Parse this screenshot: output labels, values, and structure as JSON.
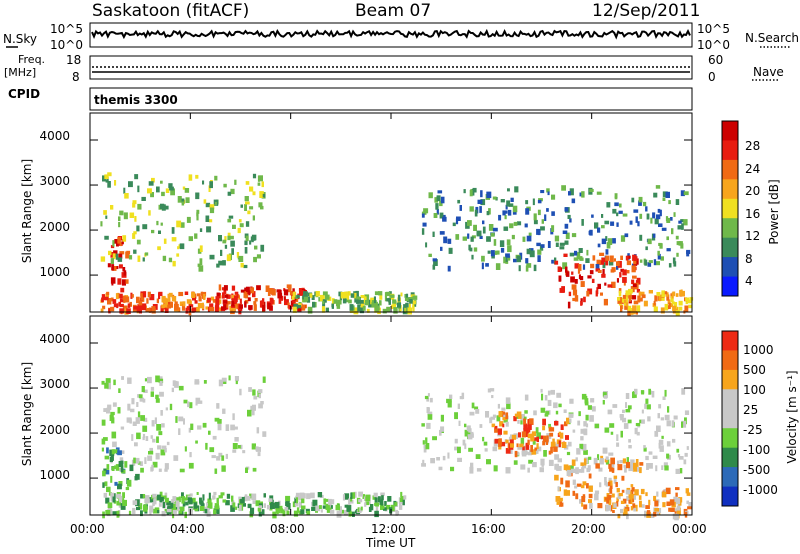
{
  "header": {
    "station": "Saskatoon (fitACF)",
    "beam": "Beam 07",
    "date": "12/Sep/2011"
  },
  "top_panels": {
    "nsky_label": "N.Sky",
    "nsky_ticks": [
      "10^5",
      "10^0"
    ],
    "nsearch_label": "N.Search",
    "nsearch_ticks": [
      "10^5",
      "10^0"
    ],
    "freq_label_1": "Freq.",
    "freq_label_2": "[MHz]",
    "freq_ticks": [
      "18",
      "8"
    ],
    "nave_label": "Nave",
    "nave_ticks": [
      "60",
      "0"
    ],
    "cpid_label": "CPID",
    "cpid_value": "themis 3300"
  },
  "colors": {
    "power_scale": [
      "#0a1aff",
      "#1e4fb4",
      "#3a8a5a",
      "#6fb84a",
      "#f0e020",
      "#f7a51c",
      "#f06a14",
      "#e81c10",
      "#cc0000"
    ],
    "velocity_scale": [
      "#1030c0",
      "#2c6ab8",
      "#2f8a4a",
      "#6ccf3a",
      "#c8c8c8",
      "#c8c8c8",
      "#f7a51c",
      "#f06a14",
      "#ee2a14"
    ]
  },
  "chart_data": [
    {
      "type": "heatmap",
      "name": "power",
      "xlabel": "",
      "ylabel": "Slant Range [km]",
      "xlim_hours": [
        0,
        24
      ],
      "ylim": [
        180,
        4600
      ],
      "yticks": [
        "1000",
        "2000",
        "3000",
        "4000"
      ],
      "colorbar_label": "Power [dB]",
      "colorbar_ticks": [
        "4",
        "8",
        "12",
        "16",
        "20",
        "24",
        "28"
      ],
      "regions": [
        {
          "t0": 0.6,
          "t1": 1.6,
          "r0": 700,
          "r1": 1900,
          "level": 7
        },
        {
          "t0": 0.4,
          "t1": 6.9,
          "r0": 1200,
          "r1": 3300,
          "level": 3
        },
        {
          "t0": 0.4,
          "t1": 6.0,
          "r0": 250,
          "r1": 650,
          "level": 6
        },
        {
          "t0": 5.0,
          "t1": 8.5,
          "r0": 300,
          "r1": 800,
          "level": 7
        },
        {
          "t0": 8.0,
          "t1": 13.0,
          "r0": 250,
          "r1": 650,
          "level": 3
        },
        {
          "t0": 13.2,
          "t1": 23.8,
          "r0": 1200,
          "r1": 3000,
          "level": 2
        },
        {
          "t0": 18.5,
          "t1": 21.8,
          "r0": 400,
          "r1": 1500,
          "level": 7
        },
        {
          "t0": 21.0,
          "t1": 23.9,
          "r0": 200,
          "r1": 700,
          "level": 5
        }
      ]
    },
    {
      "type": "heatmap",
      "name": "velocity",
      "xlabel": "Time UT",
      "ylabel": "Slant Range [km]",
      "xlim_hours": [
        0,
        24
      ],
      "ylim": [
        180,
        4600
      ],
      "xticks": [
        "00:00",
        "04:00",
        "08:00",
        "12:00",
        "16:00",
        "20:00",
        "00:00"
      ],
      "yticks": [
        "1000",
        "2000",
        "3000",
        "4000"
      ],
      "colorbar_label": "Velocity [m s⁻¹]",
      "colorbar_ticks": [
        "1000",
        "500",
        "100",
        "25",
        "-25",
        "-100",
        "-500",
        "-1000"
      ],
      "regions": [
        {
          "t0": 0.4,
          "t1": 6.9,
          "r0": 1200,
          "r1": 3300,
          "level": 4
        },
        {
          "t0": 0.4,
          "t1": 12.5,
          "r0": 250,
          "r1": 700,
          "level": 3
        },
        {
          "t0": 0.4,
          "t1": 1.8,
          "r0": 800,
          "r1": 1700,
          "level": 2
        },
        {
          "t0": 13.2,
          "t1": 23.8,
          "r0": 1200,
          "r1": 3000,
          "level": 4
        },
        {
          "t0": 16.0,
          "t1": 19.0,
          "r0": 1600,
          "r1": 2500,
          "level": 7
        },
        {
          "t0": 18.5,
          "t1": 22.0,
          "r0": 400,
          "r1": 1500,
          "level": 6
        },
        {
          "t0": 20.5,
          "t1": 23.9,
          "r0": 200,
          "r1": 800,
          "level": 6
        }
      ]
    }
  ]
}
